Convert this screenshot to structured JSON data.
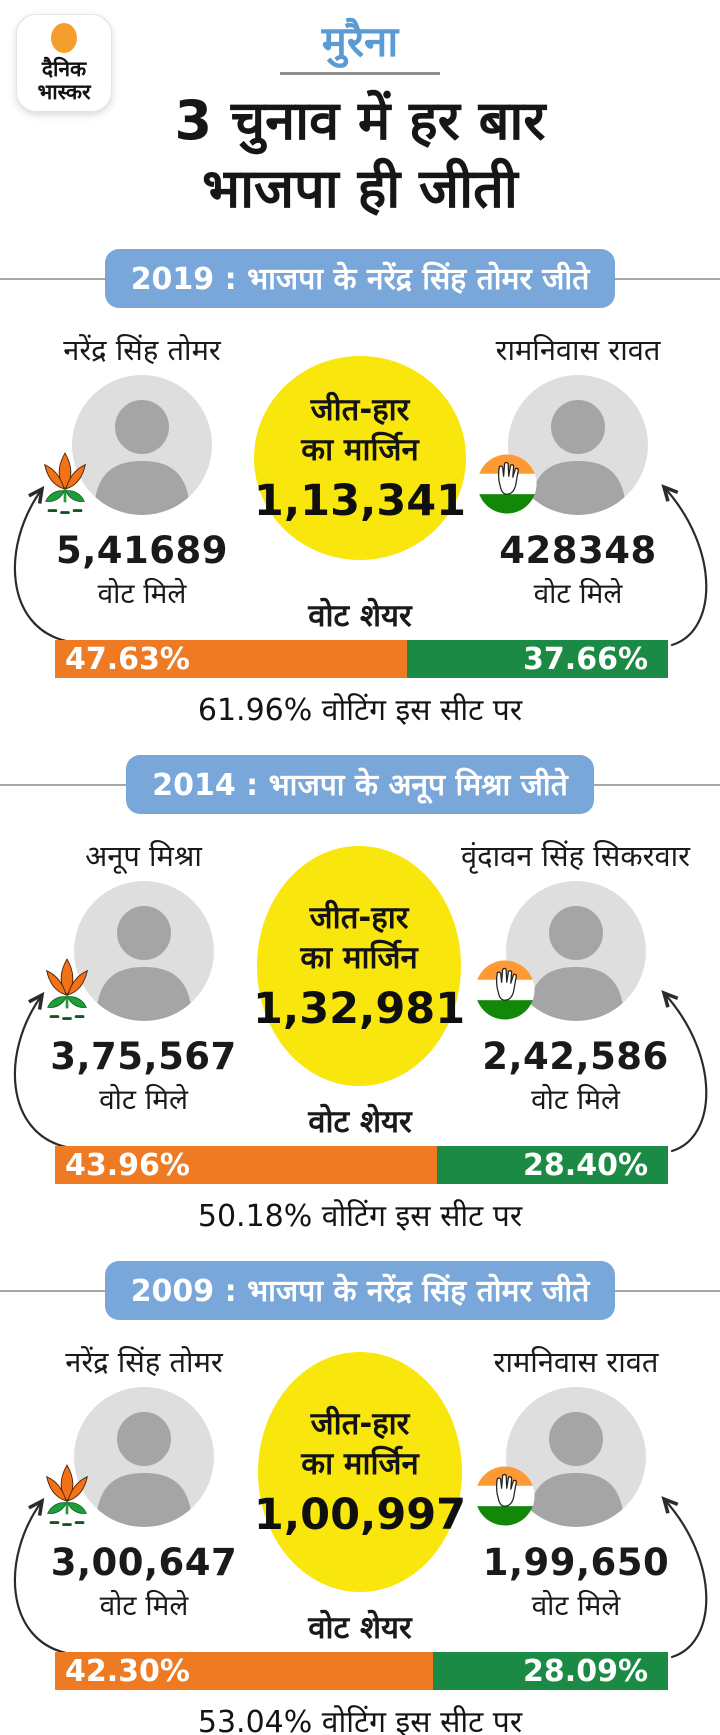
{
  "brand": {
    "logo_line1": "दैनिक",
    "logo_line2": "भास्कर"
  },
  "header": {
    "kicker": "मुरैना",
    "title_line1": "3 चुनाव में हर बार",
    "title_line2": "भाजपा ही जीती"
  },
  "labels": {
    "vote_share": "वोट शेयर",
    "votes_received": "वोट मिले",
    "margin_line1": "जीत-हार",
    "margin_line2": "का मार्जिन"
  },
  "colors": {
    "accent_blue": "#79A7D9",
    "kicker_blue": "#5B9BD5",
    "margin_yellow": "#F8E60D",
    "bjp_orange": "#EE7B23",
    "congress_green": "#1B8A44",
    "photo_bg": "#DEDEDE"
  },
  "sections": [
    {
      "year": "2019",
      "header": "2019 : भाजपा के नरेंद्र सिंह तोमर जीते",
      "winner": {
        "name": "नरेंद्र सिंह तोमर",
        "party": "भाजपा",
        "symbol": "bjp-lotus",
        "votes": "5,41689",
        "vote_share": "47.63%"
      },
      "runner_up": {
        "name": "रामनिवास रावत",
        "party": "कांग्रेस",
        "symbol": "congress-hand",
        "votes": "428348",
        "vote_share": "37.66%"
      },
      "margin": "1,13,341",
      "turnout": "61.96% वोटिंग इस सीट पर"
    },
    {
      "year": "2014",
      "header": "2014 : भाजपा के अनूप मिश्रा जीते",
      "winner": {
        "name": "अनूप मिश्रा",
        "party": "भाजपा",
        "symbol": "bjp-lotus",
        "votes": "3,75,567",
        "vote_share": "43.96%"
      },
      "runner_up": {
        "name": "वृंदावन सिंह सिकरवार",
        "party": "कांग्रेस",
        "symbol": "congress-hand",
        "votes": "2,42,586",
        "vote_share": "28.40%"
      },
      "margin": "1,32,981",
      "turnout": "50.18% वोटिंग इस सीट पर"
    },
    {
      "year": "2009",
      "header": "2009 : भाजपा के नरेंद्र सिंह तोमर जीते",
      "winner": {
        "name": "नरेंद्र सिंह तोमर",
        "party": "भाजपा",
        "symbol": "bjp-lotus",
        "votes": "3,00,647",
        "vote_share": "42.30%"
      },
      "runner_up": {
        "name": "रामनिवास रावत",
        "party": "कांग्रेस",
        "symbol": "congress-hand",
        "votes": "1,99,650",
        "vote_share": "28.09%"
      },
      "margin": "1,00,997",
      "turnout": "53.04% वोटिंग इस सीट पर"
    }
  ],
  "chart_data": {
    "type": "bar",
    "title": "मुरैना — 3 चुनाव में हर बार भाजपा ही जीती",
    "categories": [
      "2019",
      "2014",
      "2009"
    ],
    "series": [
      {
        "name": "BJP vote share %",
        "values": [
          47.63,
          43.96,
          42.3
        ]
      },
      {
        "name": "Congress vote share %",
        "values": [
          37.66,
          28.4,
          28.09
        ]
      }
    ],
    "bjp_votes": [
      541689,
      375567,
      300647
    ],
    "congress_votes": [
      428348,
      242586,
      199650
    ],
    "victory_margins": [
      113341,
      132981,
      100997
    ],
    "turnout_pct": [
      61.96,
      50.18,
      53.04
    ],
    "legend_position": "none",
    "grid": false
  }
}
